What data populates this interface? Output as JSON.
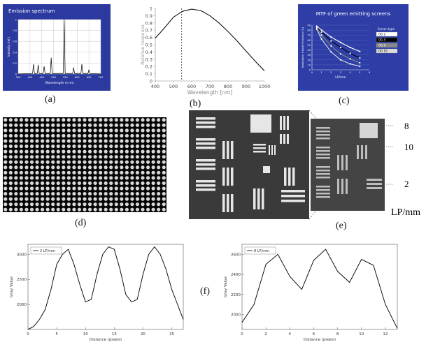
{
  "labels": {
    "a": "(a)",
    "b": "(b)",
    "c": "(c)",
    "d": "(d)",
    "e": "(e)",
    "f": "(f)"
  },
  "panel_e": {
    "lp_numbers": [
      "8",
      "10",
      "2"
    ],
    "unit": "LP/mm"
  },
  "chart_data": [
    {
      "id": "a",
      "type": "line",
      "title": "Emission spectrum",
      "xlabel": "Wavelength in nm",
      "ylabel": "Intensity (rel.)",
      "xlim": [
        350,
        700
      ],
      "ylim": [
        0,
        1
      ],
      "x_ticks": [
        "350",
        "400",
        "450",
        "500",
        "550",
        "600",
        "650",
        "700"
      ],
      "y_ticks": [
        "0",
        "0.2",
        "0.4",
        "0.6",
        "0.8",
        "1"
      ],
      "peaks": [
        {
          "x": 415,
          "y": 0.18
        },
        {
          "x": 435,
          "y": 0.17
        },
        {
          "x": 460,
          "y": 0.14
        },
        {
          "x": 490,
          "y": 0.3
        },
        {
          "x": 545,
          "y": 1.0
        },
        {
          "x": 585,
          "y": 0.12
        },
        {
          "x": 620,
          "y": 0.18
        },
        {
          "x": 650,
          "y": 0.08
        }
      ]
    },
    {
      "id": "b",
      "type": "line",
      "xlabel": "Wavelength [nm]",
      "ylabel": "Relative response",
      "xlim": [
        400,
        1000
      ],
      "ylim": [
        0,
        1
      ],
      "x_ticks": [
        "400",
        "500",
        "600",
        "700",
        "800",
        "900",
        "1000"
      ],
      "y_ticks": [
        "0",
        "0.1",
        "0.2",
        "0.3",
        "0.4",
        "0.5",
        "0.6",
        "0.7",
        "0.8",
        "0.9",
        "1"
      ],
      "dashed_vline_x": 545,
      "x": [
        400,
        450,
        500,
        550,
        600,
        650,
        700,
        750,
        800,
        850,
        900,
        950,
        1000
      ],
      "y": [
        0.59,
        0.73,
        0.88,
        0.96,
        0.99,
        0.97,
        0.9,
        0.8,
        0.68,
        0.55,
        0.41,
        0.27,
        0.14
      ]
    },
    {
      "id": "c",
      "type": "line",
      "title": "MTF of green emitting screens",
      "xlabel": "LP/mm",
      "ylabel": "Modulation transfer function (%)",
      "xlim": [
        0,
        6
      ],
      "ylim": [
        0,
        90
      ],
      "x_ticks": [
        "0",
        "1",
        "2",
        "3",
        "4",
        "5",
        "6"
      ],
      "y_ticks": [
        "0",
        "10",
        "20",
        "30",
        "40",
        "50",
        "60",
        "70",
        "80",
        "90"
      ],
      "legend_title": "Screen type",
      "x": [
        0.5,
        1,
        2,
        3,
        4,
        5
      ],
      "series": [
        {
          "name": "OG 2",
          "color": "#ffffff",
          "values": [
            88,
            80,
            66,
            55,
            45,
            37
          ]
        },
        {
          "name": "OG 4",
          "color": "#000000",
          "values": [
            86,
            76,
            58,
            45,
            33,
            24
          ]
        },
        {
          "name": "OG 8",
          "color": "#888888",
          "values": [
            84,
            70,
            48,
            32,
            22,
            14
          ]
        },
        {
          "name": "OG 16",
          "color": "#dddddd",
          "values": [
            82,
            62,
            36,
            20,
            12,
            7
          ]
        }
      ]
    },
    {
      "id": "f-left",
      "type": "line",
      "xlabel": "Distance (pixels)",
      "ylabel": "Gray Value",
      "legend": "2 LP/mm",
      "xlim": [
        0,
        27
      ],
      "ylim": [
        1500,
        3200
      ],
      "x_ticks": [
        "0",
        "5",
        "10",
        "15",
        "20",
        "25"
      ],
      "y_ticks": [
        "2000",
        "2500",
        "3000"
      ],
      "x": [
        0,
        1,
        2,
        3,
        4,
        5,
        6,
        7,
        8,
        9,
        10,
        11,
        12,
        13,
        14,
        15,
        16,
        17,
        18,
        19,
        20,
        21,
        22,
        23,
        24,
        25,
        26,
        27
      ],
      "y": [
        1500,
        1560,
        1700,
        1900,
        2300,
        2800,
        3000,
        3100,
        2800,
        2400,
        2050,
        2100,
        2600,
        3000,
        3150,
        3100,
        2700,
        2200,
        2050,
        2100,
        2600,
        3000,
        3150,
        3000,
        2700,
        2300,
        2000,
        1700
      ]
    },
    {
      "id": "f-right",
      "type": "line",
      "xlabel": "Distance (pixels)",
      "ylabel": "Gray Value",
      "legend": "8 LP/mm",
      "xlim": [
        0,
        13
      ],
      "ylim": [
        1850,
        2700
      ],
      "x_ticks": [
        "0",
        "2",
        "4",
        "6",
        "8",
        "10",
        "12"
      ],
      "y_ticks": [
        "2000",
        "2200",
        "2400",
        "2600"
      ],
      "x": [
        0,
        1,
        2,
        3,
        4,
        5,
        6,
        7,
        8,
        9,
        10,
        11,
        12,
        13
      ],
      "y": [
        1920,
        2100,
        2500,
        2600,
        2380,
        2250,
        2540,
        2650,
        2430,
        2320,
        2550,
        2490,
        2100,
        1860
      ]
    }
  ]
}
